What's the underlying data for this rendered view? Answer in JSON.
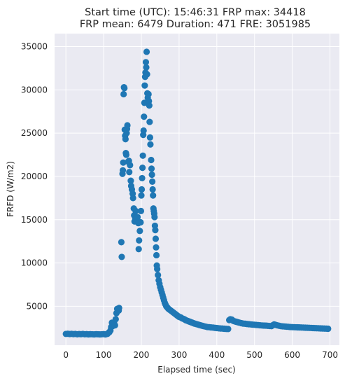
{
  "chart_data": {
    "type": "scatter",
    "title_line1": "Start time (UTC): 15:46:31 FRP max: 34418",
    "title_line2": "FRP mean: 6479 Duration: 471 FRE: 3051985",
    "xlabel": "Elapsed time (sec)",
    "ylabel": "FRFD (W/m2)",
    "xlim": [
      -30,
      725
    ],
    "ylim": [
      500,
      36500
    ],
    "x_ticks": [
      0,
      100,
      200,
      300,
      400,
      500,
      600,
      700
    ],
    "y_ticks": [
      5000,
      10000,
      15000,
      20000,
      25000,
      30000,
      35000
    ],
    "grid": true,
    "marker_color": "#1f77b4",
    "background_color": "#eaeaf2",
    "points": [
      [
        0,
        1800
      ],
      [
        5,
        1820
      ],
      [
        10,
        1790
      ],
      [
        15,
        1810
      ],
      [
        20,
        1780
      ],
      [
        25,
        1800
      ],
      [
        30,
        1760
      ],
      [
        35,
        1790
      ],
      [
        40,
        1770
      ],
      [
        45,
        1800
      ],
      [
        50,
        1760
      ],
      [
        55,
        1780
      ],
      [
        60,
        1750
      ],
      [
        65,
        1770
      ],
      [
        70,
        1760
      ],
      [
        75,
        1750
      ],
      [
        80,
        1770
      ],
      [
        85,
        1760
      ],
      [
        90,
        1750
      ],
      [
        95,
        1760
      ],
      [
        100,
        1780
      ],
      [
        105,
        1750
      ],
      [
        110,
        1800
      ],
      [
        112,
        1900
      ],
      [
        115,
        2000
      ],
      [
        118,
        2200
      ],
      [
        120,
        2600
      ],
      [
        122,
        3100
      ],
      [
        124,
        2700
      ],
      [
        126,
        2900
      ],
      [
        128,
        3000
      ],
      [
        130,
        2800
      ],
      [
        132,
        3500
      ],
      [
        134,
        4200
      ],
      [
        136,
        4700
      ],
      [
        138,
        4600
      ],
      [
        140,
        4500
      ],
      [
        141,
        4800
      ],
      [
        147,
        12400
      ],
      [
        148,
        10700
      ],
      [
        150,
        20300
      ],
      [
        151,
        20700
      ],
      [
        152,
        21600
      ],
      [
        153,
        29500
      ],
      [
        154,
        30300
      ],
      [
        155,
        30200
      ],
      [
        156,
        25400
      ],
      [
        157,
        24700
      ],
      [
        158,
        24300
      ],
      [
        159,
        22700
      ],
      [
        160,
        22500
      ],
      [
        161,
        25000
      ],
      [
        162,
        25500
      ],
      [
        163,
        25900
      ],
      [
        165,
        21700
      ],
      [
        167,
        21800
      ],
      [
        168,
        20500
      ],
      [
        170,
        21300
      ],
      [
        172,
        19500
      ],
      [
        173,
        18900
      ],
      [
        175,
        18500
      ],
      [
        177,
        18000
      ],
      [
        178,
        17500
      ],
      [
        180,
        16300
      ],
      [
        181,
        15500
      ],
      [
        182,
        14800
      ],
      [
        184,
        15200
      ],
      [
        185,
        16000
      ],
      [
        186,
        15000
      ],
      [
        188,
        14900
      ],
      [
        190,
        15300
      ],
      [
        192,
        14600
      ],
      [
        193,
        11600
      ],
      [
        194,
        12600
      ],
      [
        196,
        13700
      ],
      [
        198,
        14700
      ],
      [
        199,
        16000
      ],
      [
        200,
        17800
      ],
      [
        201,
        18500
      ],
      [
        202,
        19800
      ],
      [
        203,
        21000
      ],
      [
        204,
        22400
      ],
      [
        205,
        24800
      ],
      [
        206,
        25300
      ],
      [
        207,
        26900
      ],
      [
        208,
        28500
      ],
      [
        209,
        30500
      ],
      [
        210,
        31500
      ],
      [
        211,
        32000
      ],
      [
        212,
        33200
      ],
      [
        213,
        32600
      ],
      [
        214,
        34400
      ],
      [
        215,
        31800
      ],
      [
        216,
        29600
      ],
      [
        217,
        29100
      ],
      [
        219,
        29500
      ],
      [
        220,
        28700
      ],
      [
        221,
        28200
      ],
      [
        222,
        26300
      ],
      [
        223,
        24500
      ],
      [
        224,
        23700
      ],
      [
        226,
        21900
      ],
      [
        227,
        20900
      ],
      [
        228,
        20200
      ],
      [
        229,
        19400
      ],
      [
        230,
        18500
      ],
      [
        231,
        17800
      ],
      [
        232,
        16300
      ],
      [
        233,
        16000
      ],
      [
        234,
        15700
      ],
      [
        235,
        15300
      ],
      [
        236,
        14300
      ],
      [
        237,
        13800
      ],
      [
        238,
        12800
      ],
      [
        239,
        11800
      ],
      [
        240,
        10900
      ],
      [
        241,
        9700
      ],
      [
        242,
        9300
      ],
      [
        244,
        8600
      ],
      [
        246,
        8000
      ],
      [
        248,
        7600
      ],
      [
        250,
        7200
      ],
      [
        252,
        6900
      ],
      [
        254,
        6600
      ],
      [
        256,
        6300
      ],
      [
        258,
        6000
      ],
      [
        260,
        5700
      ],
      [
        262,
        5400
      ],
      [
        264,
        5200
      ],
      [
        266,
        5000
      ],
      [
        268,
        4900
      ],
      [
        270,
        4800
      ],
      [
        272,
        4700
      ],
      [
        275,
        4600
      ],
      [
        278,
        4500
      ],
      [
        281,
        4400
      ],
      [
        284,
        4300
      ],
      [
        287,
        4200
      ],
      [
        290,
        4100
      ],
      [
        293,
        4000
      ],
      [
        296,
        3900
      ],
      [
        299,
        3800
      ],
      [
        302,
        3750
      ],
      [
        305,
        3700
      ],
      [
        308,
        3600
      ],
      [
        311,
        3550
      ],
      [
        314,
        3500
      ],
      [
        317,
        3400
      ],
      [
        320,
        3350
      ],
      [
        323,
        3300
      ],
      [
        326,
        3250
      ],
      [
        329,
        3200
      ],
      [
        332,
        3150
      ],
      [
        335,
        3100
      ],
      [
        338,
        3050
      ],
      [
        341,
        3000
      ],
      [
        345,
        2950
      ],
      [
        349,
        2900
      ],
      [
        353,
        2850
      ],
      [
        357,
        2800
      ],
      [
        361,
        2750
      ],
      [
        365,
        2700
      ],
      [
        370,
        2650
      ],
      [
        375,
        2600
      ],
      [
        380,
        2580
      ],
      [
        385,
        2550
      ],
      [
        390,
        2530
      ],
      [
        395,
        2500
      ],
      [
        400,
        2480
      ],
      [
        405,
        2450
      ],
      [
        410,
        2430
      ],
      [
        415,
        2420
      ],
      [
        420,
        2400
      ],
      [
        425,
        2380
      ],
      [
        430,
        2370
      ],
      [
        433,
        3400
      ],
      [
        436,
        3500
      ],
      [
        440,
        3450
      ],
      [
        444,
        3300
      ],
      [
        448,
        3250
      ],
      [
        452,
        3200
      ],
      [
        456,
        3150
      ],
      [
        460,
        3100
      ],
      [
        465,
        3050
      ],
      [
        470,
        3000
      ],
      [
        475,
        2980
      ],
      [
        480,
        2950
      ],
      [
        485,
        2930
      ],
      [
        490,
        2900
      ],
      [
        495,
        2880
      ],
      [
        500,
        2860
      ],
      [
        505,
        2840
      ],
      [
        510,
        2820
      ],
      [
        515,
        2800
      ],
      [
        520,
        2780
      ],
      [
        525,
        2770
      ],
      [
        530,
        2760
      ],
      [
        535,
        2740
      ],
      [
        540,
        2720
      ],
      [
        545,
        2700
      ],
      [
        548,
        2800
      ],
      [
        552,
        2900
      ],
      [
        556,
        2850
      ],
      [
        560,
        2800
      ],
      [
        565,
        2750
      ],
      [
        570,
        2700
      ],
      [
        575,
        2680
      ],
      [
        580,
        2660
      ],
      [
        585,
        2640
      ],
      [
        590,
        2620
      ],
      [
        595,
        2600
      ],
      [
        600,
        2590
      ],
      [
        605,
        2580
      ],
      [
        610,
        2570
      ],
      [
        615,
        2560
      ],
      [
        620,
        2550
      ],
      [
        625,
        2540
      ],
      [
        630,
        2530
      ],
      [
        635,
        2520
      ],
      [
        640,
        2510
      ],
      [
        645,
        2500
      ],
      [
        650,
        2490
      ],
      [
        655,
        2480
      ],
      [
        660,
        2470
      ],
      [
        665,
        2460
      ],
      [
        670,
        2450
      ],
      [
        675,
        2440
      ],
      [
        680,
        2430
      ],
      [
        685,
        2420
      ],
      [
        690,
        2410
      ],
      [
        695,
        2400
      ]
    ]
  }
}
